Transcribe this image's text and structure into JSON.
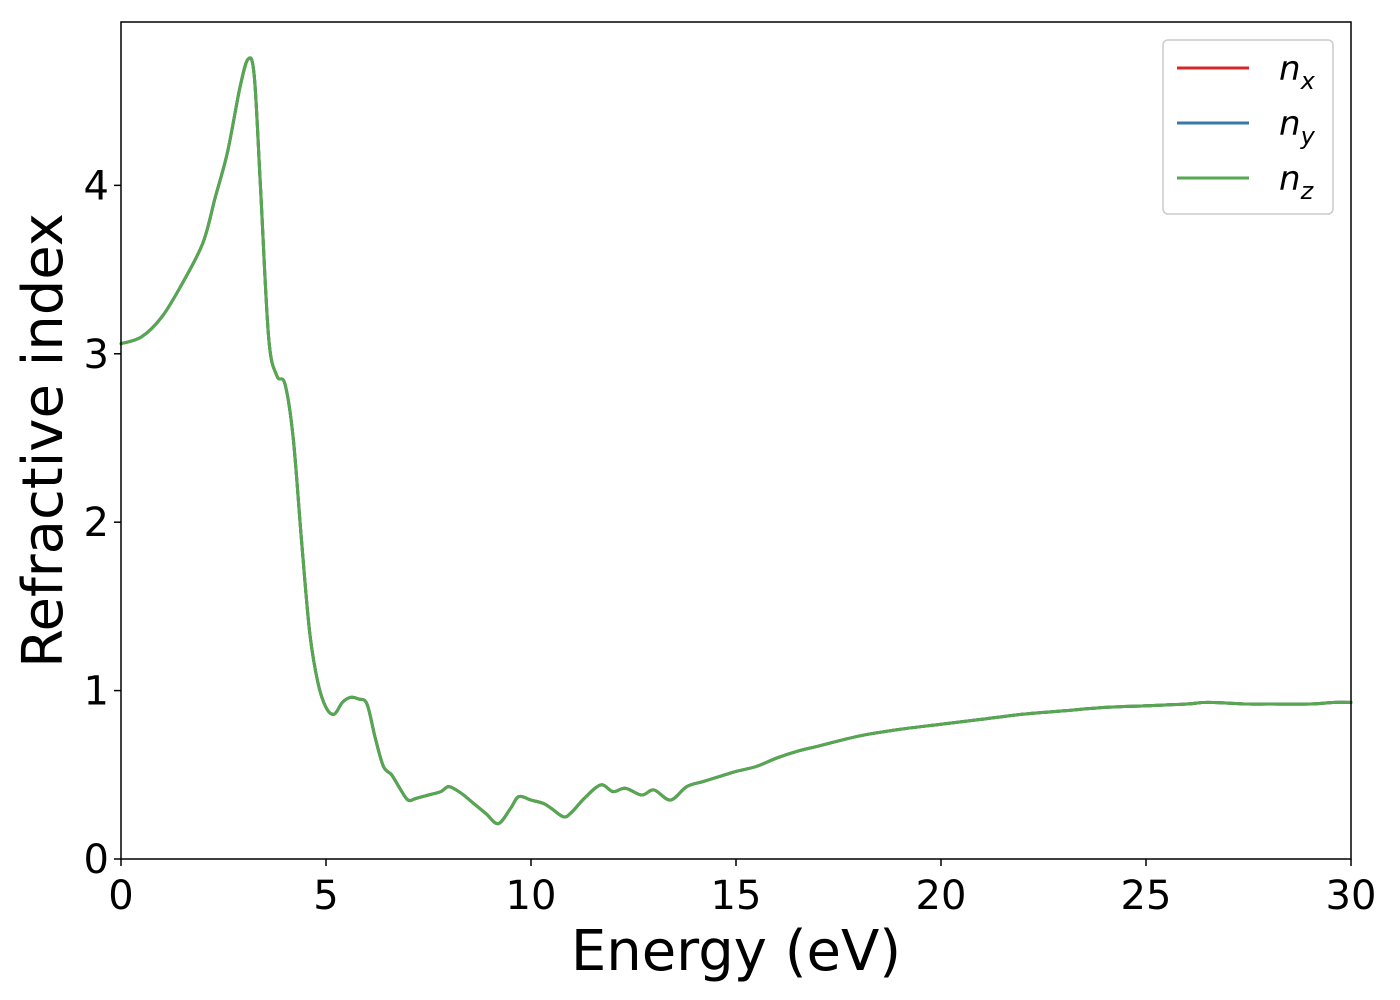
{
  "chart_data": {
    "type": "line",
    "title": "",
    "xlabel": "Energy (eV)",
    "ylabel": "Refractive index",
    "xlim": [
      0,
      30
    ],
    "ylim": [
      0,
      4.97
    ],
    "xticks": [
      0,
      5,
      10,
      15,
      20,
      25,
      30
    ],
    "xtick_labels": [
      "0",
      "5",
      "10",
      "15",
      "20",
      "25",
      "30"
    ],
    "yticks": [
      0,
      1,
      2,
      3,
      4
    ],
    "ytick_labels": [
      "0",
      "1",
      "2",
      "3",
      "4"
    ],
    "grid": false,
    "legend_position": "top-right",
    "series": [
      {
        "name": "n_x",
        "legend_main": "n",
        "legend_sub": "x",
        "color": "#d62728",
        "x": [
          0,
          0.5,
          1.0,
          1.5,
          2.0,
          2.3,
          2.6,
          2.9,
          3.1,
          3.25,
          3.4,
          3.6,
          3.8,
          4.0,
          4.2,
          4.4,
          4.6,
          4.8,
          5.0,
          5.2,
          5.4,
          5.6,
          5.8,
          6.0,
          6.2,
          6.4,
          6.6,
          6.8,
          7.0,
          7.2,
          7.5,
          7.8,
          8.0,
          8.3,
          8.6,
          8.9,
          9.2,
          9.5,
          9.7,
          10.0,
          10.3,
          10.5,
          10.8,
          11.0,
          11.3,
          11.7,
          12.0,
          12.3,
          12.7,
          13.0,
          13.4,
          13.8,
          14.2,
          14.6,
          15.0,
          15.5,
          16.0,
          16.5,
          17.0,
          18.0,
          19.0,
          20.0,
          21.0,
          22.0,
          23.0,
          24.0,
          25.0,
          26.0,
          26.5,
          27.5,
          28.0,
          29.0,
          29.6,
          30.0
        ],
        "y": [
          3.06,
          3.1,
          3.22,
          3.42,
          3.66,
          3.93,
          4.2,
          4.58,
          4.75,
          4.65,
          4.0,
          3.1,
          2.87,
          2.82,
          2.5,
          1.9,
          1.35,
          1.05,
          0.9,
          0.86,
          0.93,
          0.96,
          0.95,
          0.92,
          0.72,
          0.55,
          0.5,
          0.42,
          0.35,
          0.36,
          0.38,
          0.4,
          0.43,
          0.39,
          0.33,
          0.27,
          0.21,
          0.3,
          0.37,
          0.35,
          0.33,
          0.3,
          0.25,
          0.28,
          0.36,
          0.44,
          0.4,
          0.42,
          0.38,
          0.41,
          0.35,
          0.43,
          0.46,
          0.49,
          0.52,
          0.55,
          0.6,
          0.64,
          0.67,
          0.73,
          0.77,
          0.8,
          0.83,
          0.86,
          0.88,
          0.9,
          0.91,
          0.92,
          0.93,
          0.92,
          0.92,
          0.92,
          0.93,
          0.93
        ]
      },
      {
        "name": "n_y",
        "legend_main": "n",
        "legend_sub": "y",
        "color": "#3a78a8",
        "x": [
          0,
          0.5,
          1.0,
          1.5,
          2.0,
          2.3,
          2.6,
          2.9,
          3.1,
          3.25,
          3.4,
          3.6,
          3.8,
          4.0,
          4.2,
          4.4,
          4.6,
          4.8,
          5.0,
          5.2,
          5.4,
          5.6,
          5.8,
          6.0,
          6.2,
          6.4,
          6.6,
          6.8,
          7.0,
          7.2,
          7.5,
          7.8,
          8.0,
          8.3,
          8.6,
          8.9,
          9.2,
          9.5,
          9.7,
          10.0,
          10.3,
          10.5,
          10.8,
          11.0,
          11.3,
          11.7,
          12.0,
          12.3,
          12.7,
          13.0,
          13.4,
          13.8,
          14.2,
          14.6,
          15.0,
          15.5,
          16.0,
          16.5,
          17.0,
          18.0,
          19.0,
          20.0,
          21.0,
          22.0,
          23.0,
          24.0,
          25.0,
          26.0,
          26.5,
          27.5,
          28.0,
          29.0,
          29.6,
          30.0
        ],
        "y": [
          3.06,
          3.1,
          3.22,
          3.42,
          3.66,
          3.93,
          4.2,
          4.58,
          4.75,
          4.65,
          4.0,
          3.1,
          2.87,
          2.82,
          2.5,
          1.9,
          1.35,
          1.05,
          0.9,
          0.86,
          0.93,
          0.96,
          0.95,
          0.92,
          0.72,
          0.55,
          0.5,
          0.42,
          0.35,
          0.36,
          0.38,
          0.4,
          0.43,
          0.39,
          0.33,
          0.27,
          0.21,
          0.3,
          0.37,
          0.35,
          0.33,
          0.3,
          0.25,
          0.28,
          0.36,
          0.44,
          0.4,
          0.42,
          0.38,
          0.41,
          0.35,
          0.43,
          0.46,
          0.49,
          0.52,
          0.55,
          0.6,
          0.64,
          0.67,
          0.73,
          0.77,
          0.8,
          0.83,
          0.86,
          0.88,
          0.9,
          0.91,
          0.92,
          0.93,
          0.92,
          0.92,
          0.92,
          0.93,
          0.93
        ]
      },
      {
        "name": "n_z",
        "legend_main": "n",
        "legend_sub": "z",
        "color": "#55a84f",
        "x": [
          0,
          0.5,
          1.0,
          1.5,
          2.0,
          2.3,
          2.6,
          2.9,
          3.1,
          3.25,
          3.4,
          3.6,
          3.8,
          4.0,
          4.2,
          4.4,
          4.6,
          4.8,
          5.0,
          5.2,
          5.4,
          5.6,
          5.8,
          6.0,
          6.2,
          6.4,
          6.6,
          6.8,
          7.0,
          7.2,
          7.5,
          7.8,
          8.0,
          8.3,
          8.6,
          8.9,
          9.2,
          9.5,
          9.7,
          10.0,
          10.3,
          10.5,
          10.8,
          11.0,
          11.3,
          11.7,
          12.0,
          12.3,
          12.7,
          13.0,
          13.4,
          13.8,
          14.2,
          14.6,
          15.0,
          15.5,
          16.0,
          16.5,
          17.0,
          18.0,
          19.0,
          20.0,
          21.0,
          22.0,
          23.0,
          24.0,
          25.0,
          26.0,
          26.5,
          27.5,
          28.0,
          29.0,
          29.6,
          30.0
        ],
        "y": [
          3.06,
          3.1,
          3.22,
          3.42,
          3.66,
          3.93,
          4.2,
          4.58,
          4.75,
          4.65,
          4.0,
          3.1,
          2.87,
          2.82,
          2.5,
          1.9,
          1.35,
          1.05,
          0.9,
          0.86,
          0.93,
          0.96,
          0.95,
          0.92,
          0.72,
          0.55,
          0.5,
          0.42,
          0.35,
          0.36,
          0.38,
          0.4,
          0.43,
          0.39,
          0.33,
          0.27,
          0.21,
          0.3,
          0.37,
          0.35,
          0.33,
          0.3,
          0.25,
          0.28,
          0.36,
          0.44,
          0.4,
          0.42,
          0.38,
          0.41,
          0.35,
          0.43,
          0.46,
          0.49,
          0.52,
          0.55,
          0.6,
          0.64,
          0.67,
          0.73,
          0.77,
          0.8,
          0.83,
          0.86,
          0.88,
          0.9,
          0.91,
          0.92,
          0.93,
          0.92,
          0.92,
          0.92,
          0.93,
          0.93
        ]
      }
    ]
  }
}
